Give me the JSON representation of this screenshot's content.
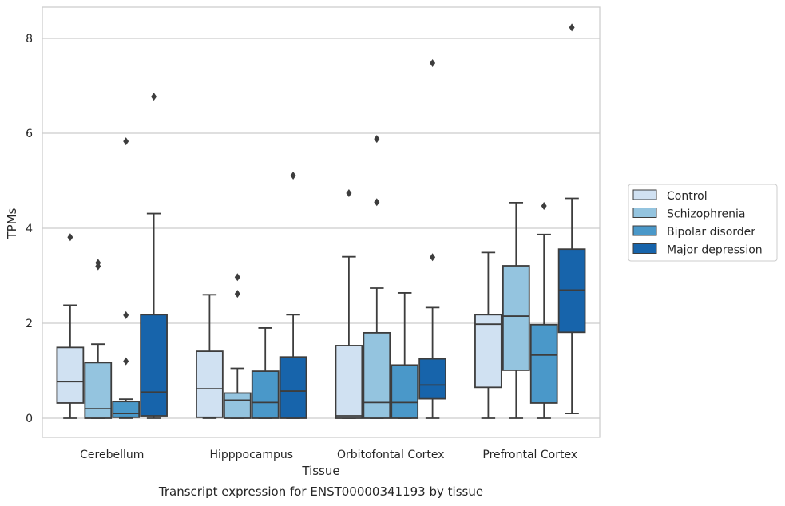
{
  "chart_data": {
    "type": "boxplot",
    "xlabel": "Tissue",
    "ylabel": "TPMs",
    "caption": "Transcript expression for ENST00000341193 by tissue",
    "ylim": [
      -0.4,
      8.65
    ],
    "yticks": [
      "0",
      "2",
      "4",
      "6",
      "8"
    ],
    "grid": "horizontal",
    "legend_position": "right",
    "categories": [
      "Cerebellum",
      "Hipppocampus",
      "Orbitofontal Cortex",
      "Prefrontal Cortex"
    ],
    "series": [
      {
        "name": "Control",
        "color": "#d0e1f2",
        "boxes": [
          {
            "whislo": 0,
            "q1": 0.32,
            "med": 0.77,
            "q3": 1.49,
            "whishi": 2.38,
            "fliers": [
              3.81
            ]
          },
          {
            "whislo": 0,
            "q1": 0.02,
            "med": 0.62,
            "q3": 1.41,
            "whishi": 2.6,
            "fliers": []
          },
          {
            "whislo": 0,
            "q1": 0.0,
            "med": 0.05,
            "q3": 1.53,
            "whishi": 3.4,
            "fliers": [
              4.74
            ]
          },
          {
            "whislo": 0,
            "q1": 0.65,
            "med": 1.98,
            "q3": 2.18,
            "whishi": 3.49,
            "fliers": []
          }
        ]
      },
      {
        "name": "Schizophrenia",
        "color": "#94c4df",
        "boxes": [
          {
            "whislo": 0,
            "q1": 0.0,
            "med": 0.2,
            "q3": 1.17,
            "whishi": 1.56,
            "fliers": [
              3.2,
              3.27
            ]
          },
          {
            "whislo": 0,
            "q1": 0.0,
            "med": 0.38,
            "q3": 0.53,
            "whishi": 1.05,
            "fliers": [
              2.62,
              2.97
            ]
          },
          {
            "whislo": 0,
            "q1": 0.0,
            "med": 0.33,
            "q3": 1.8,
            "whishi": 2.74,
            "fliers": [
              4.55,
              5.88
            ]
          },
          {
            "whislo": 0,
            "q1": 1.01,
            "med": 2.15,
            "q3": 3.21,
            "whishi": 4.54,
            "fliers": []
          }
        ]
      },
      {
        "name": "Bipolar disorder",
        "color": "#4a98c9",
        "boxes": [
          {
            "whislo": 0,
            "q1": 0.02,
            "med": 0.1,
            "q3": 0.35,
            "whishi": 0.4,
            "fliers": [
              1.2,
              2.17,
              5.83
            ]
          },
          {
            "whislo": 0,
            "q1": 0.0,
            "med": 0.33,
            "q3": 0.99,
            "whishi": 1.9,
            "fliers": []
          },
          {
            "whislo": 0,
            "q1": 0.0,
            "med": 0.33,
            "q3": 1.12,
            "whishi": 2.64,
            "fliers": []
          },
          {
            "whislo": 0,
            "q1": 0.32,
            "med": 1.33,
            "q3": 1.97,
            "whishi": 3.87,
            "fliers": [
              4.47
            ]
          }
        ]
      },
      {
        "name": "Major depression",
        "color": "#1764ab",
        "boxes": [
          {
            "whislo": 0,
            "q1": 0.05,
            "med": 0.55,
            "q3": 2.18,
            "whishi": 4.31,
            "fliers": [
              6.77
            ]
          },
          {
            "whislo": 0,
            "q1": 0.0,
            "med": 0.57,
            "q3": 1.29,
            "whishi": 2.18,
            "fliers": [
              5.11
            ]
          },
          {
            "whislo": 0,
            "q1": 0.41,
            "med": 0.7,
            "q3": 1.25,
            "whishi": 2.33,
            "fliers": [
              3.39,
              7.48
            ]
          },
          {
            "whislo": 0.1,
            "q1": 1.81,
            "med": 2.7,
            "q3": 3.56,
            "whishi": 4.63,
            "fliers": [
              8.23
            ]
          }
        ]
      }
    ]
  }
}
